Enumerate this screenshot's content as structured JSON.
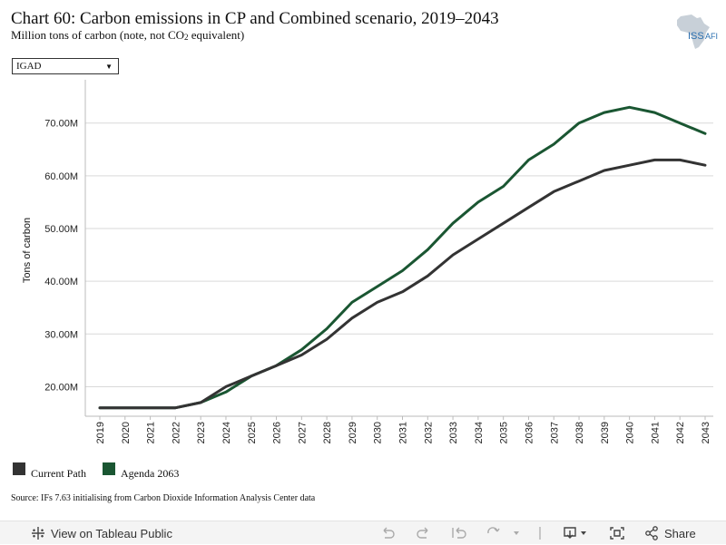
{
  "header": {
    "title": "Chart 60: Carbon emissions in CP and Combined scenario, 2019–2043",
    "subtitle_pre": "Million tons of carbon (note, not CO",
    "subtitle_sub": "2",
    "subtitle_post": " equivalent)"
  },
  "logo": {
    "text": "ISS",
    "suffix": "AFI",
    "icon": "africa-map-icon"
  },
  "filter": {
    "selected": "IGAD"
  },
  "chart_data": {
    "type": "line",
    "title": "Chart 60: Carbon emissions in CP and Combined scenario, 2019–2043",
    "subtitle": "Million tons of carbon (note, not CO2 equivalent)",
    "xlabel": "",
    "ylabel": "Tons of carbon",
    "x": [
      "2019",
      "2020",
      "2021",
      "2022",
      "2023",
      "2024",
      "2025",
      "2026",
      "2027",
      "2028",
      "2029",
      "2030",
      "2031",
      "2032",
      "2033",
      "2034",
      "2035",
      "2036",
      "2037",
      "2038",
      "2039",
      "2040",
      "2041",
      "2042",
      "2043"
    ],
    "yticks": [
      20,
      30,
      40,
      50,
      60,
      70
    ],
    "ytick_labels": [
      "20.00M",
      "30.00M",
      "40.00M",
      "50.00M",
      "60.00M",
      "70.00M"
    ],
    "ylim": [
      14.4,
      77
    ],
    "grid": true,
    "legend_position": "bottom-left",
    "series": [
      {
        "name": "Current Path",
        "color": "#333333",
        "values": [
          16,
          16,
          16,
          16,
          17,
          20,
          22,
          24,
          26,
          29,
          33,
          36,
          38,
          41,
          45,
          48,
          51,
          54,
          57,
          59,
          61,
          62,
          63,
          63,
          62
        ]
      },
      {
        "name": "Agenda 2063",
        "color": "#1a5632",
        "values": [
          16,
          16,
          16,
          16,
          17,
          19,
          22,
          24,
          27,
          31,
          36,
          39,
          42,
          46,
          51,
          55,
          58,
          63,
          66,
          70,
          72,
          73,
          72,
          70,
          68
        ]
      }
    ]
  },
  "source": "Source: IFs 7.63 initialising from Carbon Dioxide Information Analysis Center data",
  "toolbar": {
    "view_label": "View on Tableau Public",
    "share_label": "Share",
    "icons": [
      "tableau-logo-icon",
      "undo-icon",
      "redo-icon",
      "revert-icon",
      "refresh-icon",
      "download-icon",
      "fullscreen-icon",
      "share-icon"
    ]
  }
}
